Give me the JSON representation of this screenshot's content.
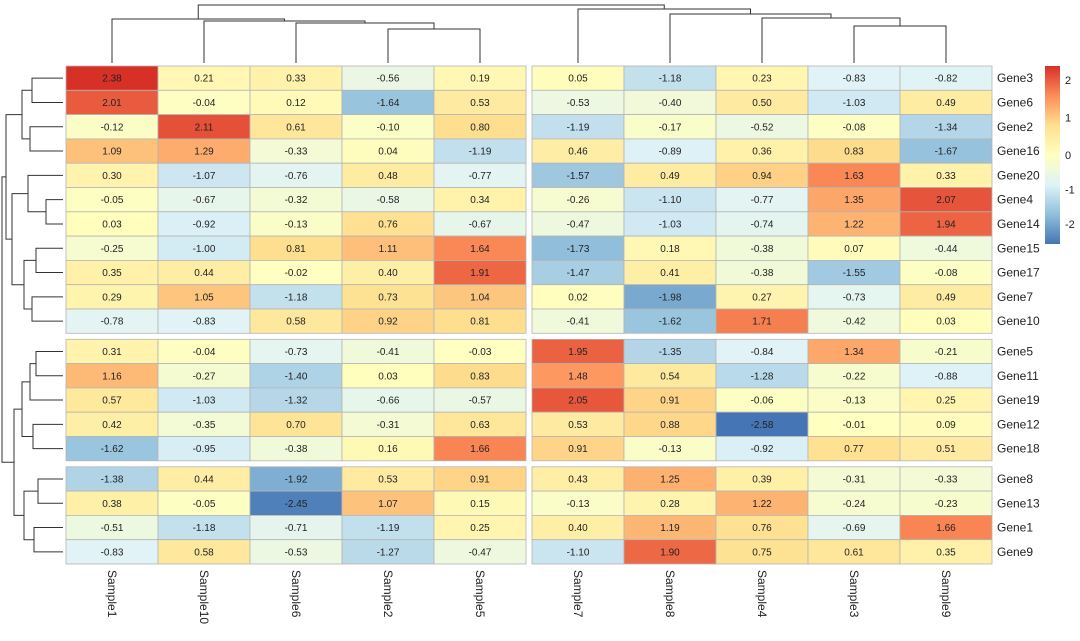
{
  "chart_data": {
    "type": "heatmap",
    "title": "",
    "columns": [
      "Sample1",
      "Sample10",
      "Sample6",
      "Sample2",
      "Sample5",
      "Sample7",
      "Sample8",
      "Sample4",
      "Sample3",
      "Sample9"
    ],
    "rows": [
      "Gene3",
      "Gene6",
      "Gene2",
      "Gene16",
      "Gene20",
      "Gene4",
      "Gene14",
      "Gene15",
      "Gene17",
      "Gene7",
      "Gene10",
      "Gene5",
      "Gene11",
      "Gene19",
      "Gene12",
      "Gene18",
      "Gene8",
      "Gene13",
      "Gene1",
      "Gene9"
    ],
    "values": [
      [
        2.38,
        0.21,
        0.33,
        -0.56,
        0.19,
        0.05,
        -1.18,
        0.23,
        -0.83,
        -0.82
      ],
      [
        2.01,
        -0.04,
        0.12,
        -1.64,
        0.53,
        -0.53,
        -0.4,
        0.5,
        -1.03,
        0.49
      ],
      [
        -0.12,
        2.11,
        0.61,
        -0.1,
        0.8,
        -1.19,
        -0.17,
        -0.52,
        -0.08,
        -1.34
      ],
      [
        1.09,
        1.29,
        -0.33,
        0.04,
        -1.19,
        0.46,
        -0.89,
        0.36,
        0.83,
        -1.67
      ],
      [
        0.3,
        -1.07,
        -0.76,
        0.48,
        -0.77,
        -1.57,
        0.49,
        0.94,
        1.63,
        0.33
      ],
      [
        -0.05,
        -0.67,
        -0.32,
        -0.58,
        0.34,
        -0.26,
        -1.1,
        -0.77,
        1.35,
        2.07
      ],
      [
        0.03,
        -0.92,
        -0.13,
        0.76,
        -0.67,
        -0.47,
        -1.03,
        -0.74,
        1.22,
        1.94
      ],
      [
        -0.25,
        -1.0,
        0.81,
        1.11,
        1.64,
        -1.73,
        0.18,
        -0.38,
        0.07,
        -0.44
      ],
      [
        0.35,
        0.44,
        -0.02,
        0.4,
        1.91,
        -1.47,
        0.41,
        -0.38,
        -1.55,
        -0.08
      ],
      [
        0.29,
        1.05,
        -1.18,
        0.73,
        1.04,
        0.02,
        -1.98,
        0.27,
        -0.73,
        0.49
      ],
      [
        -0.78,
        -0.83,
        0.58,
        0.92,
        0.81,
        -0.41,
        -1.62,
        1.71,
        -0.42,
        0.03
      ],
      [
        0.31,
        -0.04,
        -0.73,
        -0.41,
        -0.03,
        1.95,
        -1.35,
        -0.84,
        1.34,
        -0.21
      ],
      [
        1.16,
        -0.27,
        -1.4,
        0.03,
        0.83,
        1.48,
        0.54,
        -1.28,
        -0.22,
        -0.88
      ],
      [
        0.57,
        -1.03,
        -1.32,
        -0.66,
        -0.57,
        2.05,
        0.91,
        -0.06,
        -0.13,
        0.25
      ],
      [
        0.42,
        -0.35,
        0.7,
        -0.31,
        0.63,
        0.53,
        0.88,
        -2.58,
        -0.01,
        0.09
      ],
      [
        -1.62,
        -0.95,
        -0.38,
        0.16,
        1.66,
        0.91,
        -0.13,
        -0.92,
        0.77,
        0.51
      ],
      [
        -1.38,
        0.44,
        -1.92,
        0.53,
        0.91,
        0.43,
        1.25,
        0.39,
        -0.31,
        -0.33
      ],
      [
        0.38,
        -0.05,
        -2.45,
        1.07,
        0.15,
        -0.13,
        0.28,
        1.22,
        -0.24,
        -0.23
      ],
      [
        -0.51,
        -1.18,
        -0.71,
        -1.19,
        0.25,
        0.4,
        1.19,
        0.76,
        -0.69,
        1.66
      ],
      [
        -0.83,
        0.58,
        -0.53,
        -1.27,
        -0.47,
        -1.1,
        1.9,
        0.75,
        0.61,
        0.35
      ]
    ],
    "value_range": [
      -2.58,
      2.38
    ],
    "legend_ticks": [
      "2",
      "1",
      "0",
      "-1",
      "-2"
    ],
    "color_scale": [
      "#4575b4",
      "#91bfdb",
      "#e0f3f8",
      "#ffffbf",
      "#fee090",
      "#fc8d59",
      "#d73027"
    ],
    "cell_border_color": "#b5b5b5",
    "column_gap_after": [
      "Sample5"
    ],
    "row_gaps_after": [
      "Gene10",
      "Gene18"
    ],
    "column_dendrogram": true,
    "row_dendrogram": true,
    "legend_placement": "right"
  }
}
